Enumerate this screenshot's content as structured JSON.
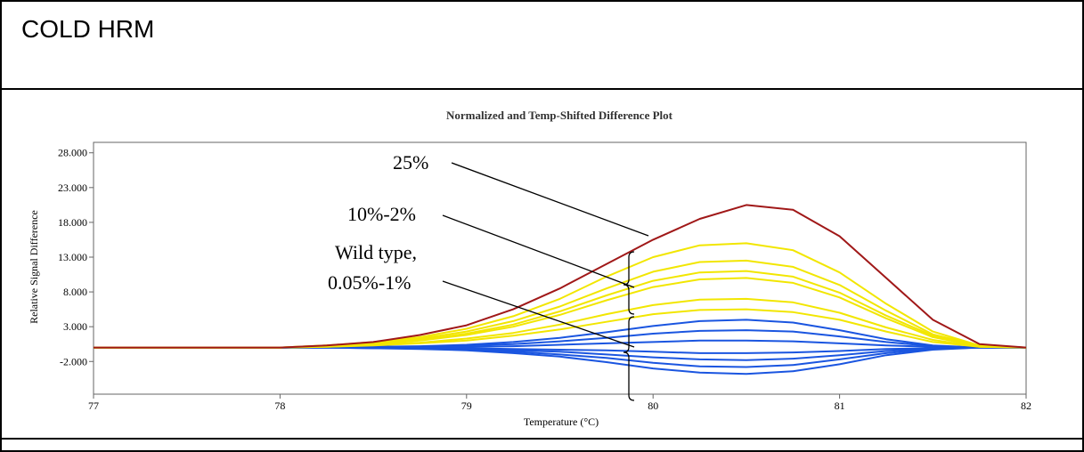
{
  "header": {
    "title": "COLD HRM"
  },
  "chart_data": {
    "type": "line",
    "title": "Normalized and Temp-Shifted Difference Plot",
    "x_label": "Temperature (°C)",
    "y_label": "Relative Signal Difference",
    "xlim": [
      77,
      82
    ],
    "xticks": [
      77,
      78,
      79,
      80,
      81,
      82
    ],
    "ylim": [
      -6.7,
      29.5
    ],
    "yticks": [
      {
        "value": -2,
        "label": "-2.000"
      },
      {
        "value": 3,
        "label": "3.000"
      },
      {
        "value": 8,
        "label": "8.000"
      },
      {
        "value": 13,
        "label": "13.000"
      },
      {
        "value": 18,
        "label": "18.000"
      },
      {
        "value": 23,
        "label": "23.000"
      },
      {
        "value": 28,
        "label": "28.000"
      }
    ],
    "x": [
      77,
      77.5,
      78,
      78.25,
      78.5,
      78.75,
      79,
      79.25,
      79.5,
      79.75,
      80,
      80.25,
      80.5,
      80.75,
      81,
      81.25,
      81.5,
      81.75,
      82
    ],
    "series": [
      {
        "color": "#1a55e0",
        "values": [
          0,
          0,
          0,
          0,
          0.1,
          0.2,
          0.4,
          0.8,
          1.4,
          2.2,
          3.1,
          3.8,
          4,
          3.6,
          2.5,
          1.2,
          0.3,
          0,
          0
        ]
      },
      {
        "color": "#1a55e0",
        "values": [
          0,
          0,
          0,
          0,
          0.1,
          0.1,
          0.3,
          0.5,
          0.9,
          1.4,
          2,
          2.4,
          2.5,
          2.3,
          1.6,
          0.8,
          0.2,
          0,
          0
        ]
      },
      {
        "color": "#1a55e0",
        "values": [
          0,
          0,
          0,
          0,
          0,
          0.1,
          0.1,
          0.2,
          0.4,
          0.6,
          0.8,
          1,
          1,
          0.9,
          0.6,
          0.3,
          0.1,
          0,
          0
        ]
      },
      {
        "color": "#1a55e0",
        "values": [
          0,
          0,
          0,
          0,
          0,
          0,
          -0.1,
          -0.2,
          -0.3,
          -0.4,
          -0.6,
          -0.8,
          -0.8,
          -0.7,
          -0.5,
          -0.2,
          -0.1,
          0,
          0
        ]
      },
      {
        "color": "#1a55e0",
        "values": [
          0,
          0,
          0,
          0,
          0,
          -0.1,
          -0.2,
          -0.4,
          -0.6,
          -1,
          -1.4,
          -1.7,
          -1.8,
          -1.6,
          -1.1,
          -0.5,
          -0.1,
          0,
          0
        ]
      },
      {
        "color": "#1a55e0",
        "values": [
          0,
          0,
          0,
          0,
          -0.1,
          -0.1,
          -0.3,
          -0.6,
          -1,
          -1.5,
          -2.2,
          -2.7,
          -2.8,
          -2.5,
          -1.7,
          -0.8,
          -0.2,
          0,
          0
        ]
      },
      {
        "color": "#1a55e0",
        "values": [
          0,
          0,
          0,
          0,
          -0.1,
          -0.2,
          -0.4,
          -0.8,
          -1.3,
          -2.1,
          -3,
          -3.6,
          -3.8,
          -3.4,
          -2.4,
          -1.1,
          -0.3,
          0,
          0
        ]
      },
      {
        "color": "#f2e600",
        "values": [
          0,
          0,
          0,
          0.1,
          0.3,
          0.6,
          1,
          1.7,
          2.6,
          3.7,
          4.8,
          5.4,
          5.5,
          5.1,
          4,
          2.3,
          0.8,
          0.1,
          0
        ]
      },
      {
        "color": "#f2e600",
        "values": [
          0,
          0,
          0,
          0.1,
          0.4,
          0.7,
          1.3,
          2.1,
          3.3,
          4.8,
          6.1,
          6.9,
          7,
          6.5,
          5,
          2.9,
          1.1,
          0.1,
          0
        ]
      },
      {
        "color": "#f2e600",
        "values": [
          0,
          0,
          0,
          0.2,
          0.5,
          1,
          1.8,
          3,
          4.7,
          6.8,
          8.7,
          9.8,
          10,
          9.3,
          7.2,
          4.2,
          1.5,
          0.2,
          0
        ]
      },
      {
        "color": "#f2e600",
        "values": [
          0,
          0,
          0,
          0.2,
          0.6,
          1.1,
          2,
          3.3,
          5.2,
          7.5,
          9.6,
          10.8,
          11,
          10.2,
          7.9,
          4.6,
          1.7,
          0.2,
          0
        ]
      },
      {
        "color": "#f2e600",
        "values": [
          0,
          0,
          0,
          0.3,
          0.6,
          1.3,
          2.3,
          3.8,
          5.9,
          8.5,
          10.9,
          12.3,
          12.5,
          11.6,
          9,
          5.3,
          1.9,
          0.3,
          0
        ]
      },
      {
        "color": "#f2e600",
        "values": [
          0,
          0,
          0,
          0.3,
          0.8,
          1.5,
          2.7,
          4.5,
          7,
          10.2,
          13,
          14.7,
          15,
          14,
          10.8,
          6.3,
          2.3,
          0.3,
          0
        ]
      },
      {
        "color": "#a01818",
        "values": [
          0,
          0,
          0,
          0.3,
          0.8,
          1.8,
          3.2,
          5.5,
          8.5,
          12,
          15.5,
          18.5,
          20.5,
          19.8,
          16,
          10,
          4,
          0.5,
          0
        ]
      }
    ],
    "annotations": [
      "25%",
      "10%-2%",
      "Wild type,",
      "0.05%-1%"
    ]
  }
}
